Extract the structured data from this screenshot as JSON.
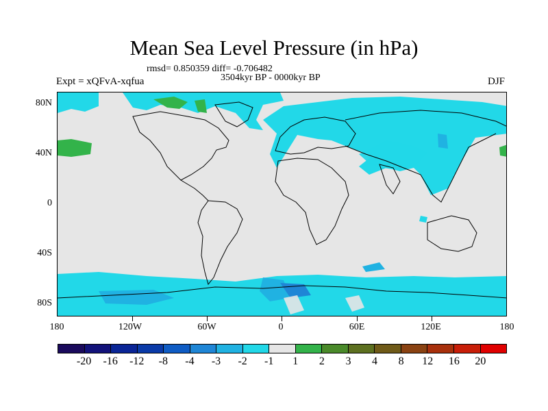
{
  "title": "Mean Sea Level Pressure (in hPa)",
  "stats": "rmsd= 0.850359 diff= -0.706482",
  "period": "3504kyr BP - 0000kyr BP",
  "experiment": "Expt = xQFvA-xqfua",
  "season": "DJF",
  "lat_labels": [
    "80N",
    "40N",
    "0",
    "40S",
    "80S"
  ],
  "lon_labels": [
    "180",
    "120W",
    "60W",
    "0",
    "60E",
    "120E",
    "180"
  ],
  "colorbar": {
    "labels": [
      "-20",
      "-16",
      "-12",
      "-8",
      "-4",
      "-3",
      "-2",
      "-1",
      "1",
      "2",
      "3",
      "4",
      "8",
      "12",
      "16",
      "20"
    ],
    "colors": [
      "#1a0a5c",
      "#12127a",
      "#0a2596",
      "#0a3aa8",
      "#0f5cc4",
      "#1f86d6",
      "#20b2e2",
      "#22d8e8",
      "#e6e6e6",
      "#33b34a",
      "#4a8a2a",
      "#5d7020",
      "#6f5a18",
      "#8a4212",
      "#a8300c",
      "#c81e08",
      "#e00000"
    ]
  },
  "legend_colors": {
    "land_outline": "#000000",
    "neutral": "#e6e6e6",
    "cyan": "#22d8e8",
    "light_blue": "#20b2e2",
    "blue": "#1f86d6",
    "green": "#33b34a"
  }
}
